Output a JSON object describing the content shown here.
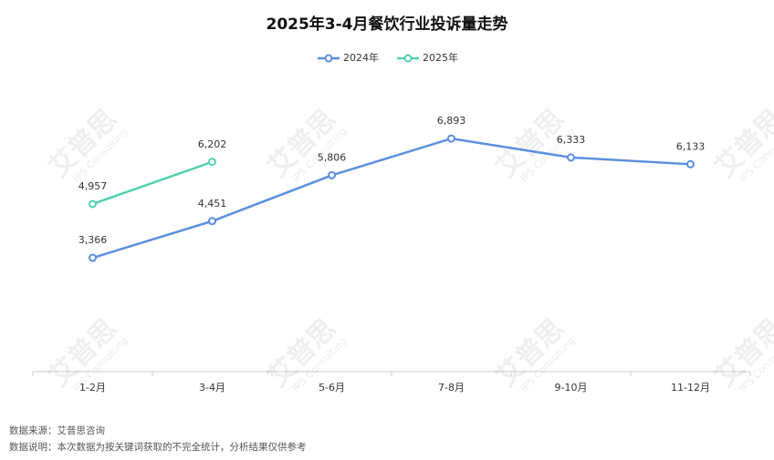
{
  "chart_data": {
    "type": "line",
    "title": "2025年3-4月餐饮行业投诉量走势",
    "categories": [
      "1-2月",
      "3-4月",
      "5-6月",
      "7-8月",
      "9-10月",
      "11-12月"
    ],
    "series": [
      {
        "name": "2024年",
        "color": "#5b8fe0",
        "values": [
          3366,
          4451,
          5806,
          6893,
          6333,
          6133
        ],
        "value_labels": [
          "3,366",
          "4,451",
          "5,806",
          "6,893",
          "6,333",
          "6,133"
        ]
      },
      {
        "name": "2025年",
        "color": "#4fd1ae",
        "values": [
          4957,
          6202,
          null,
          null,
          null,
          null
        ],
        "value_labels": [
          "4,957",
          "6,202",
          null,
          null,
          null,
          null
        ]
      }
    ],
    "ylim": [
      0,
      8000
    ],
    "legend": "top",
    "watermark": [
      "艾普思",
      "IPS Consulting"
    ],
    "footnotes": [
      "数据来源：艾普思咨询",
      "数据说明：本次数据为按关键词获取的不完全统计，分析结果仅供参考"
    ]
  }
}
